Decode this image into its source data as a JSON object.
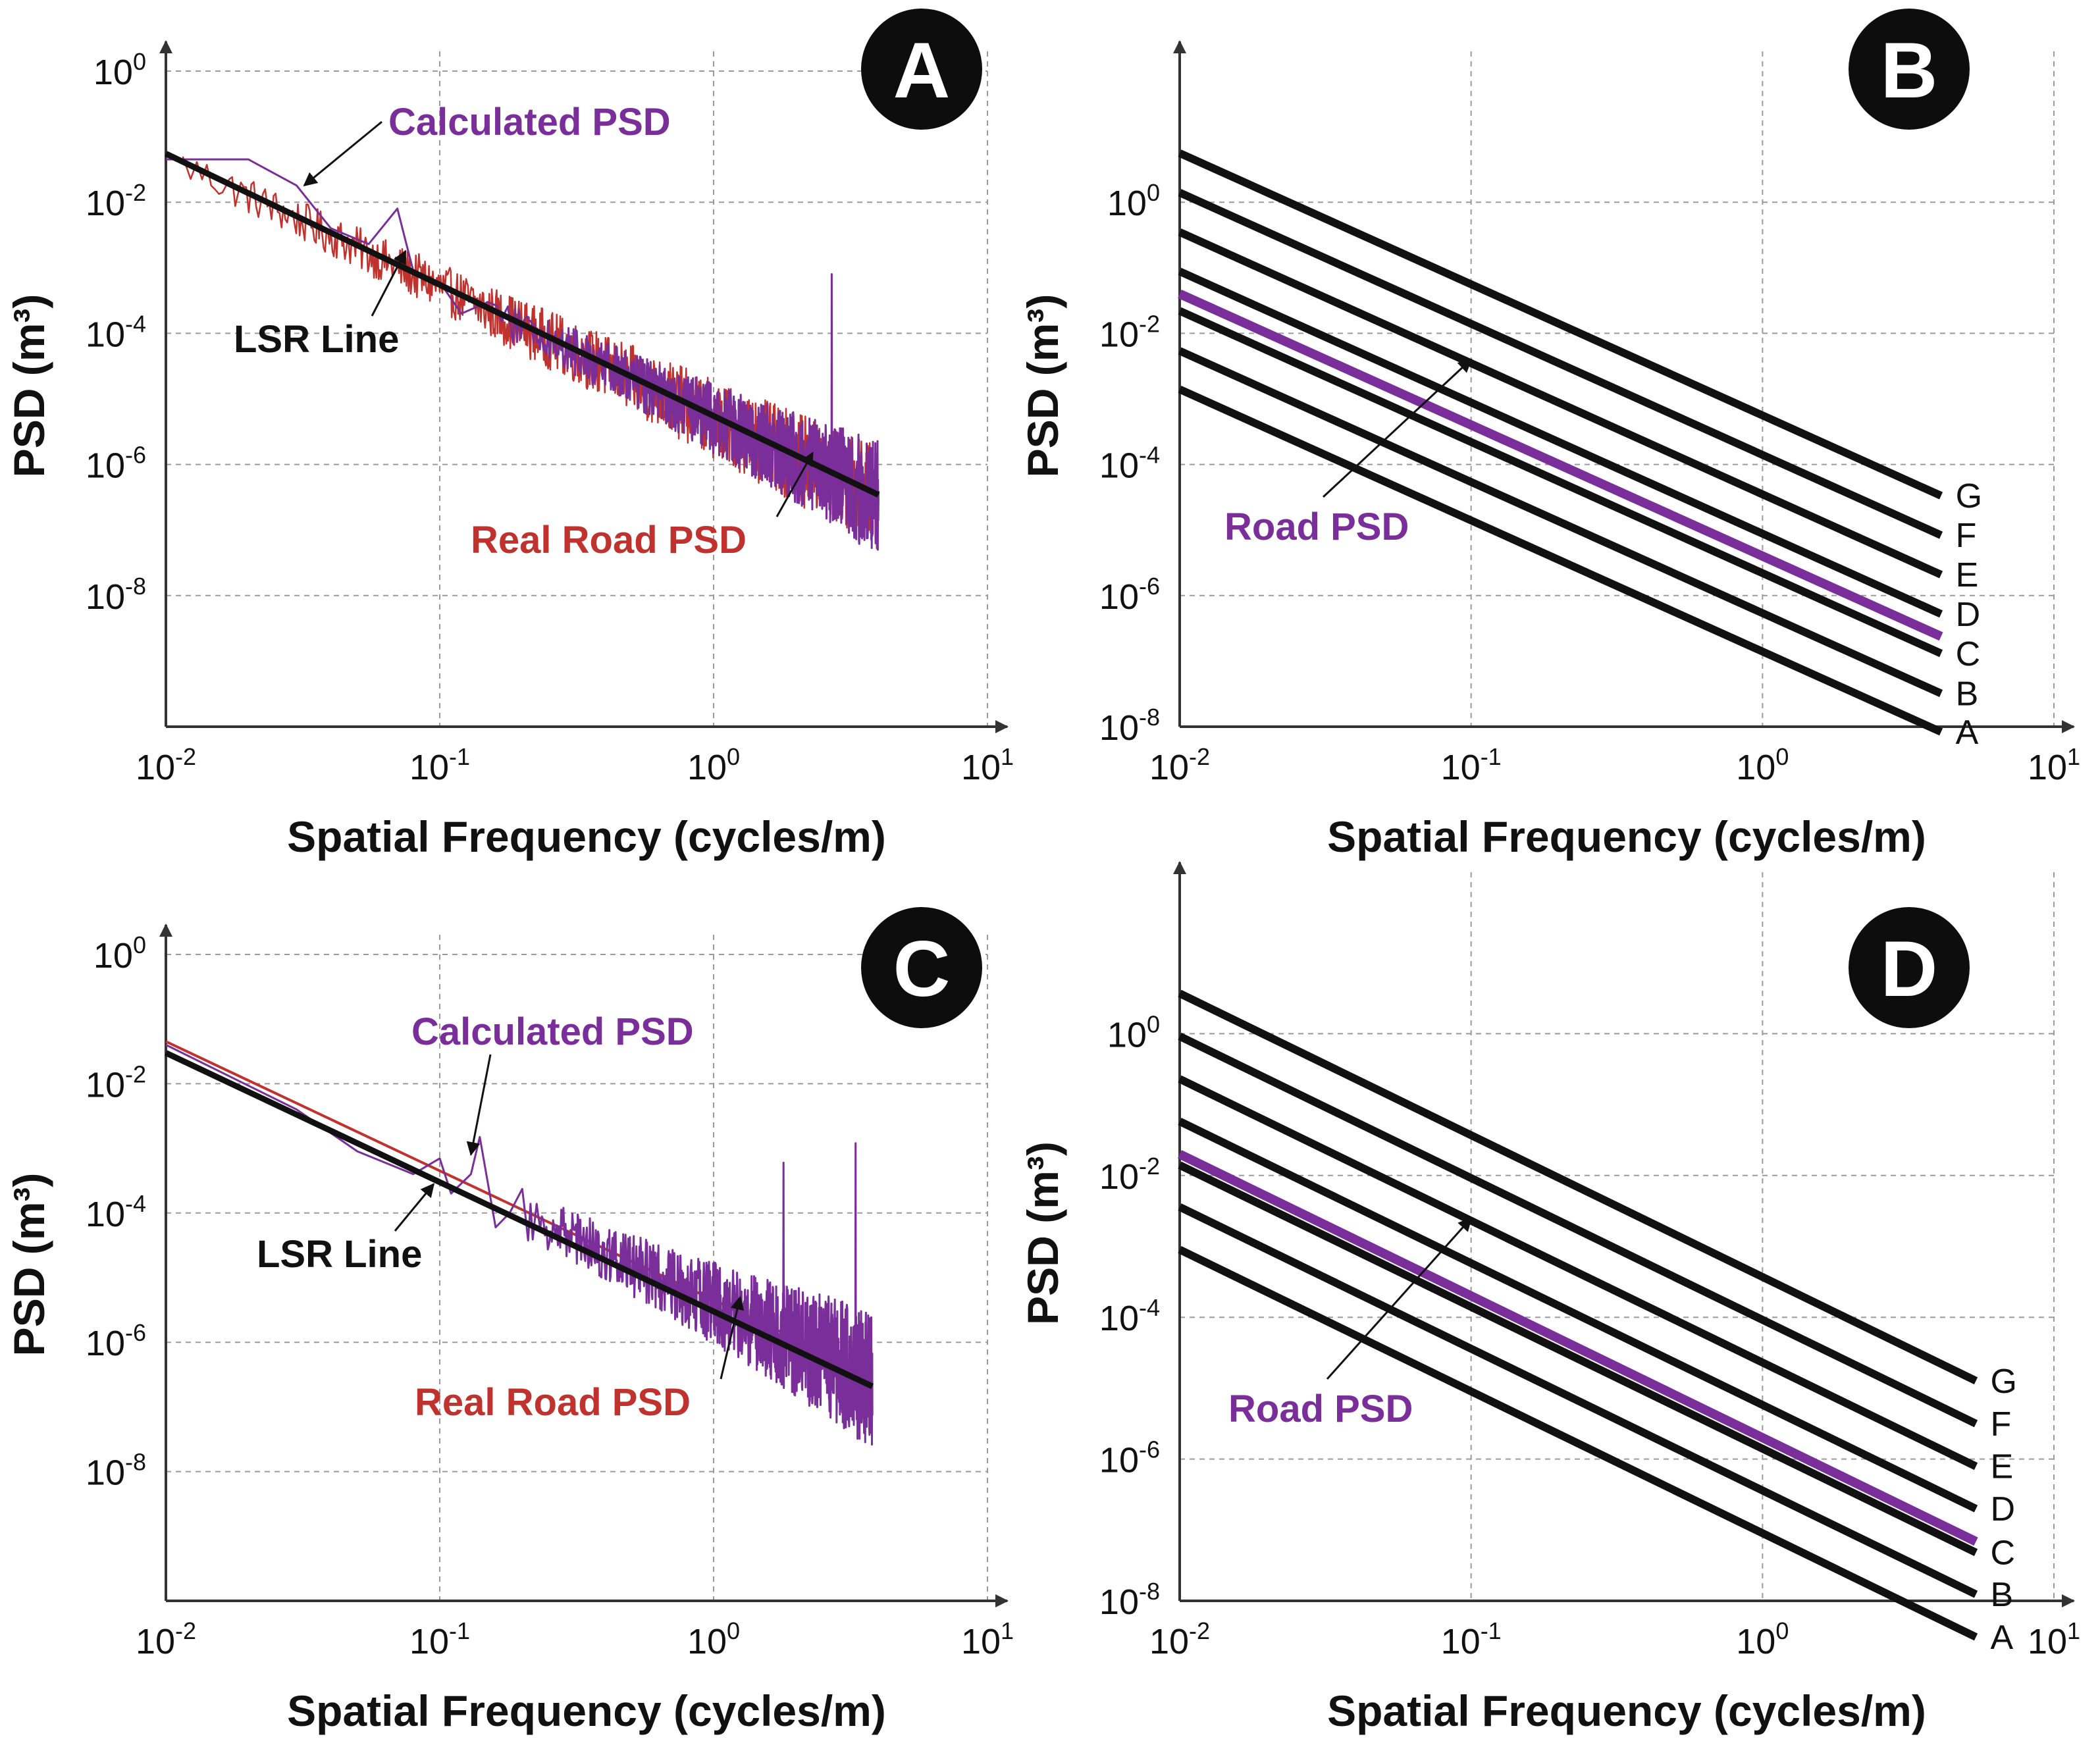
{
  "colors": {
    "calculated": "#7a2e9a",
    "real": "#c0322e",
    "lsr": "#111111",
    "road": "#7a2e9a",
    "grid": "#9a9a9a",
    "badge": "#0d0d0d"
  },
  "chart_data": [
    {
      "id": "A",
      "type": "line",
      "panel_label": "A",
      "xlabel": "Spatial Frequency (cycles/m)",
      "ylabel": "PSD (m³)",
      "xscale": "log",
      "yscale": "log",
      "xlim": [
        0.01,
        10
      ],
      "ylim": [
        1e-10,
        1
      ],
      "x_ticks": [
        {
          "base": "10",
          "exp": "-2"
        },
        {
          "base": "10",
          "exp": "-1"
        },
        {
          "base": "10",
          "exp": "0"
        },
        {
          "base": "10",
          "exp": "1"
        }
      ],
      "y_ticks": [
        {
          "base": "10",
          "exp": "-8"
        },
        {
          "base": "10",
          "exp": "-6"
        },
        {
          "base": "10",
          "exp": "-4"
        },
        {
          "base": "10",
          "exp": "-2"
        },
        {
          "base": "10",
          "exp": "0"
        }
      ],
      "grid": true,
      "series": [
        {
          "name": "Real Road PSD",
          "color": "#c0322e",
          "kind": "noisy",
          "slope": -2.0,
          "intercept_at_0.01": 0.05,
          "noise_decades": 0.8,
          "x_range": [
            0.01,
            4.0
          ]
        },
        {
          "name": "Calculated PSD",
          "color": "#7a2e9a",
          "kind": "noisy",
          "slope": -2.0,
          "intercept_at_0.01": 0.05,
          "noise_decades": 0.9,
          "x_range": [
            0.01,
            4.0
          ],
          "spikes": [
            {
              "x": 2.7,
              "y": 0.0008
            }
          ],
          "low_freq_points": [
            [
              0.01,
              0.045
            ],
            [
              0.02,
              0.045
            ],
            [
              0.03,
              0.018
            ],
            [
              0.04,
              0.004
            ],
            [
              0.055,
              0.0023
            ],
            [
              0.07,
              0.008
            ],
            [
              0.08,
              0.0009
            ],
            [
              0.1,
              0.0006
            ],
            [
              0.12,
              0.0002
            ],
            [
              0.15,
              0.0003
            ]
          ]
        },
        {
          "name": "LSR Line",
          "color": "#111111",
          "kind": "line",
          "slope": -2.0,
          "intercept_at_0.01": 0.055,
          "x_range": [
            0.01,
            4.0
          ]
        }
      ],
      "annotations": [
        {
          "text": "Calculated PSD",
          "color": "#7a2e9a",
          "target": [
            0.032,
            0.018
          ]
        },
        {
          "text": "LSR Line",
          "color": "#111111",
          "target": [
            0.075,
            0.0018
          ]
        },
        {
          "text": "Real Road PSD",
          "color": "#c0322e",
          "target": [
            2.3,
            1.5e-06
          ]
        }
      ]
    },
    {
      "id": "B",
      "type": "line",
      "panel_label": "B",
      "xlabel": "Spatial Frequency (cycles/m)",
      "ylabel": "PSD (m³)",
      "xscale": "log",
      "yscale": "log",
      "xlim": [
        0.01,
        10
      ],
      "ylim": [
        1e-08,
        100
      ],
      "x_ticks": [
        {
          "base": "10",
          "exp": "-2"
        },
        {
          "base": "10",
          "exp": "-1"
        },
        {
          "base": "10",
          "exp": "0"
        },
        {
          "base": "10",
          "exp": "1"
        }
      ],
      "y_ticks": [
        {
          "base": "10",
          "exp": "-8"
        },
        {
          "base": "10",
          "exp": "-6"
        },
        {
          "base": "10",
          "exp": "-4"
        },
        {
          "base": "10",
          "exp": "-2"
        },
        {
          "base": "10",
          "exp": "0"
        }
      ],
      "grid": true,
      "class_lines": [
        {
          "name": "A",
          "psd_at_0.01": 0.0014,
          "x_end": 4.1
        },
        {
          "name": "B",
          "psd_at_0.01": 0.0054,
          "x_end": 4.1
        },
        {
          "name": "C",
          "psd_at_0.01": 0.022,
          "x_end": 4.1
        },
        {
          "name": "D",
          "psd_at_0.01": 0.088,
          "x_end": 4.1
        },
        {
          "name": "E",
          "psd_at_0.01": 0.35,
          "x_end": 4.1
        },
        {
          "name": "F",
          "psd_at_0.01": 1.4,
          "x_end": 4.1
        },
        {
          "name": "G",
          "psd_at_0.01": 5.6,
          "x_end": 4.1
        }
      ],
      "slope": -2.0,
      "series": [
        {
          "name": "Road PSD",
          "color": "#7a2e9a",
          "psd_at_0.01": 0.04,
          "x_end": 4.1
        }
      ],
      "annotations": [
        {
          "text": "Road PSD",
          "color": "#7a2e9a",
          "target": [
            0.1,
            0.004
          ]
        }
      ]
    },
    {
      "id": "C",
      "type": "line",
      "panel_label": "C",
      "xlabel": "Spatial Frequency (cycles/m)",
      "ylabel": "PSD (m³)",
      "xscale": "log",
      "yscale": "log",
      "xlim": [
        0.01,
        10
      ],
      "ylim": [
        1e-10,
        1
      ],
      "x_ticks": [
        {
          "base": "10",
          "exp": "-2"
        },
        {
          "base": "10",
          "exp": "-1"
        },
        {
          "base": "10",
          "exp": "0"
        },
        {
          "base": "10",
          "exp": "1"
        }
      ],
      "y_ticks": [
        {
          "base": "10",
          "exp": "-8"
        },
        {
          "base": "10",
          "exp": "-6"
        },
        {
          "base": "10",
          "exp": "-4"
        },
        {
          "base": "10",
          "exp": "-2"
        },
        {
          "base": "10",
          "exp": "0"
        }
      ],
      "grid": true,
      "series": [
        {
          "name": "Real Road PSD",
          "color": "#c0322e",
          "kind": "line",
          "slope": -2.0,
          "intercept_at_0.01": 0.045,
          "x_range": [
            0.01,
            3.8
          ]
        },
        {
          "name": "Calculated PSD",
          "color": "#7a2e9a",
          "kind": "noisy",
          "slope": -2.0,
          "intercept_at_0.01": 0.04,
          "noise_decades": 1.1,
          "x_range": [
            0.01,
            3.8
          ],
          "spikes": [
            {
              "x": 1.8,
              "y": 0.0006
            },
            {
              "x": 3.3,
              "y": 0.0012
            }
          ],
          "low_freq_points": [
            [
              0.01,
              0.04
            ],
            [
              0.03,
              0.004
            ],
            [
              0.05,
              0.0009
            ],
            [
              0.08,
              0.0004
            ],
            [
              0.1,
              0.0007
            ],
            [
              0.11,
              0.0002
            ],
            [
              0.13,
              0.0004
            ],
            [
              0.14,
              0.0015
            ],
            [
              0.16,
              6e-05
            ],
            [
              0.18,
              0.0001
            ]
          ]
        },
        {
          "name": "LSR Line",
          "color": "#111111",
          "kind": "line",
          "slope": -2.0,
          "intercept_at_0.01": 0.03,
          "x_range": [
            0.01,
            3.8
          ]
        }
      ],
      "annotations": [
        {
          "text": "Calculated PSD",
          "color": "#7a2e9a",
          "target": [
            0.13,
            0.0008
          ]
        },
        {
          "text": "LSR Line",
          "color": "#111111",
          "target": [
            0.095,
            0.00028
          ]
        },
        {
          "text": "Real Road PSD",
          "color": "#c0322e",
          "target": [
            1.25,
            5e-06
          ]
        }
      ]
    },
    {
      "id": "D",
      "type": "line",
      "panel_label": "D",
      "xlabel": "Spatial Frequency (cycles/m)",
      "ylabel": "PSD (m³)",
      "xscale": "log",
      "yscale": "log",
      "xlim": [
        0.01,
        10
      ],
      "ylim": [
        1e-08,
        100
      ],
      "x_ticks": [
        {
          "base": "10",
          "exp": "-2"
        },
        {
          "base": "10",
          "exp": "-1"
        },
        {
          "base": "10",
          "exp": "0"
        },
        {
          "base": "10",
          "exp": "1"
        }
      ],
      "y_ticks": [
        {
          "base": "10",
          "exp": "-8"
        },
        {
          "base": "10",
          "exp": "-6"
        },
        {
          "base": "10",
          "exp": "-4"
        },
        {
          "base": "10",
          "exp": "-2"
        },
        {
          "base": "10",
          "exp": "0"
        }
      ],
      "grid": true,
      "class_lines": [
        {
          "name": "A",
          "psd_at_0.01": 0.0009,
          "x_end": 5.4
        },
        {
          "name": "B",
          "psd_at_0.01": 0.0036,
          "x_end": 5.4
        },
        {
          "name": "C",
          "psd_at_0.01": 0.014,
          "x_end": 5.4
        },
        {
          "name": "D",
          "psd_at_0.01": 0.058,
          "x_end": 5.4
        },
        {
          "name": "E",
          "psd_at_0.01": 0.23,
          "x_end": 5.4
        },
        {
          "name": "F",
          "psd_at_0.01": 0.92,
          "x_end": 5.4
        },
        {
          "name": "G",
          "psd_at_0.01": 3.7,
          "x_end": 5.4
        }
      ],
      "slope": -2.0,
      "series": [
        {
          "name": "Road PSD",
          "color": "#7a2e9a",
          "psd_at_0.01": 0.02,
          "x_end": 5.4
        }
      ],
      "annotations": [
        {
          "text": "Road PSD",
          "color": "#7a2e9a",
          "target": [
            0.1,
            0.0025
          ]
        }
      ]
    }
  ]
}
